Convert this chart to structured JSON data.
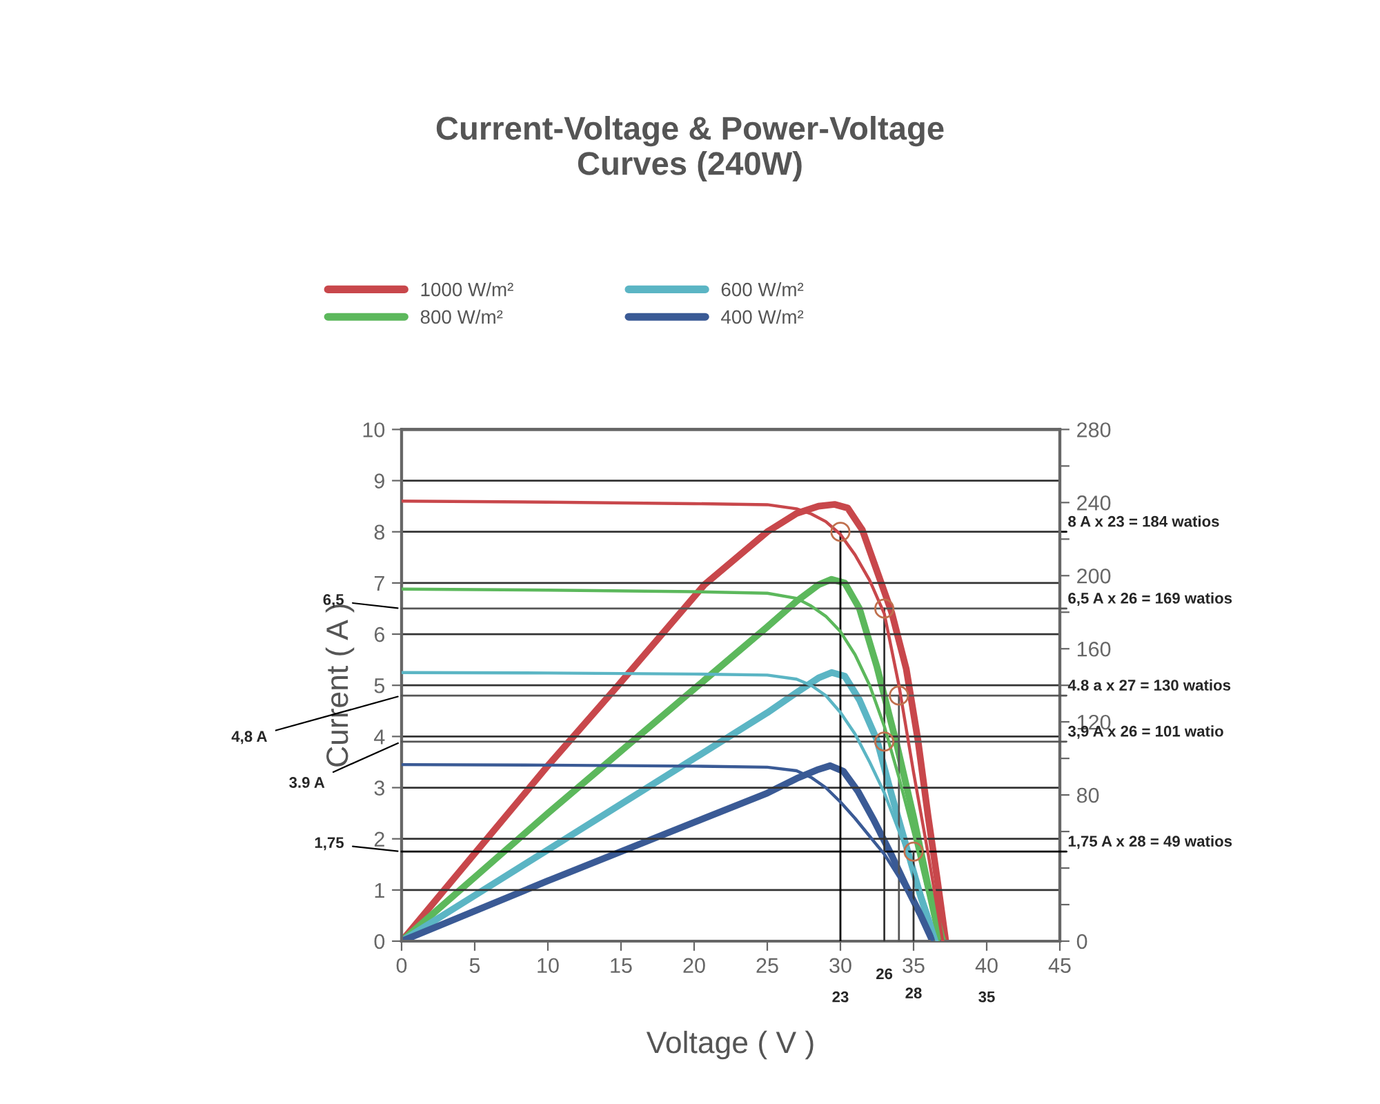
{
  "chart_data": {
    "type": "line",
    "title": "Current-Voltage & Power-Voltage\nCurves (240W)",
    "xlabel": "Voltage ( V )",
    "ylabel": "Current ( A )",
    "xlim": [
      0,
      45
    ],
    "xticks": [
      0,
      5,
      10,
      15,
      20,
      25,
      30,
      35,
      40,
      45
    ],
    "ylim": [
      0,
      10
    ],
    "yticks": [
      0,
      1,
      2,
      3,
      4,
      5,
      6,
      7,
      8,
      9,
      10
    ],
    "y2lim": [
      0,
      280
    ],
    "y2ticks": [
      0,
      {
        "value": 20,
        "label": null
      },
      {
        "value": 40,
        "label": null
      },
      {
        "value": 60,
        "label": null
      },
      80,
      {
        "value": 100,
        "label": null
      },
      120,
      {
        "value": 140,
        "label": null
      },
      160,
      {
        "value": 180,
        "label": null
      },
      200,
      {
        "value": 220,
        "label": null
      },
      240,
      {
        "value": 260,
        "label": null
      },
      280
    ],
    "grid": "y",
    "legend": "top",
    "series": [
      {
        "name": "1000 W/m²",
        "color": "#c8474b",
        "x": [
          0,
          10,
          20,
          25,
          27,
          28,
          29,
          30,
          31,
          32,
          33,
          34,
          35,
          36,
          37
        ],
        "values": [
          8.6,
          8.58,
          8.55,
          8.53,
          8.45,
          8.35,
          8.2,
          7.95,
          7.55,
          7.05,
          6.4,
          5.0,
          3.3,
          1.7,
          0
        ]
      },
      {
        "name": "800 W/m²",
        "color": "#5cb85c",
        "x": [
          0,
          10,
          20,
          25,
          27,
          28,
          29,
          30,
          31,
          32,
          33,
          34,
          35,
          36,
          36.7
        ],
        "values": [
          6.88,
          6.86,
          6.83,
          6.8,
          6.7,
          6.55,
          6.35,
          6.05,
          5.6,
          5.0,
          4.2,
          3.2,
          2.1,
          0.9,
          0
        ]
      },
      {
        "name": "600 W/m²",
        "color": "#5bb5c4",
        "x": [
          0,
          10,
          20,
          25,
          27,
          28,
          29,
          30,
          31,
          32,
          33,
          34,
          35,
          36,
          36.6
        ],
        "values": [
          5.25,
          5.24,
          5.22,
          5.2,
          5.12,
          5.0,
          4.8,
          4.47,
          4.05,
          3.5,
          2.9,
          2.15,
          1.4,
          0.55,
          0
        ]
      },
      {
        "name": "400 W/m²",
        "color": "#3a5a95",
        "x": [
          0,
          10,
          20,
          25,
          27,
          28,
          29,
          30,
          31,
          32,
          33,
          34,
          35,
          36,
          36.3
        ],
        "values": [
          3.45,
          3.44,
          3.42,
          3.4,
          3.33,
          3.2,
          3.0,
          2.72,
          2.4,
          2.05,
          1.7,
          1.25,
          0.75,
          0.25,
          0
        ]
      },
      {
        "color": "#c8474b",
        "axis": "y2",
        "x": [
          0,
          5,
          10,
          14.7,
          20.7,
          25,
          27,
          28.5,
          29.6,
          30.5,
          31.5,
          32.3,
          33.5,
          34.5,
          35.3,
          36,
          36.6,
          37.2
        ],
        "values": [
          0,
          48,
          96,
          139,
          195,
          224,
          234,
          238,
          239,
          237,
          225,
          207,
          180,
          149,
          110,
          68,
          35,
          0
        ]
      },
      {
        "color": "#5cb85c",
        "axis": "y2",
        "x": [
          0,
          5,
          10,
          15,
          20,
          25,
          27,
          28.5,
          29.4,
          30.3,
          31.3,
          32.5,
          33.9,
          35,
          36,
          37
        ],
        "values": [
          0,
          35,
          70,
          104,
          138,
          172,
          186,
          195,
          198,
          196,
          182,
          150,
          106,
          68,
          30,
          0
        ]
      },
      {
        "color": "#5bb5c4",
        "axis": "y2",
        "x": [
          0,
          10,
          20,
          25,
          27,
          28.5,
          29.4,
          30.3,
          31.3,
          32.5,
          33.5,
          34.5,
          35.5,
          36.5
        ],
        "values": [
          0,
          50,
          100,
          125,
          136,
          144,
          147,
          145,
          132,
          110,
          80,
          52,
          24,
          0
        ]
      },
      {
        "color": "#3a5a95",
        "axis": "y2",
        "x": [
          0,
          10,
          20,
          25,
          27,
          28.5,
          29.3,
          30.2,
          31.2,
          32.3,
          33.5,
          34.5,
          35.5,
          36.3
        ],
        "values": [
          0,
          33,
          65,
          81,
          89,
          94,
          96,
          93,
          82,
          66,
          47,
          30,
          14,
          0
        ]
      },
      {
        "type": "scatter",
        "marker": "circle",
        "color": "#c0704d",
        "x": [
          30,
          33,
          34,
          33,
          35
        ],
        "values": [
          8,
          6.5,
          4.8,
          3.9,
          1.75
        ]
      }
    ],
    "ref_lines": [
      {
        "axis": "y",
        "value": 6.5,
        "label": "6,5 A x 26 = 169 watios",
        "color": "#555555"
      },
      {
        "axis": "y",
        "value": 4.8,
        "label": "4.8 a x 27 = 130 watios",
        "color": "#555555"
      },
      {
        "axis": "y",
        "value": 3.9,
        "label": "3,9 A x 26 = 101 watio",
        "color": "#555555"
      },
      {
        "axis": "y",
        "value": 1.75,
        "label": "1,75 A x 28 = 49 watios",
        "color": "#000000"
      },
      {
        "axis": "x",
        "value": 30,
        "color": "#000000"
      },
      {
        "axis": "x",
        "value": 33,
        "color": "#333333"
      },
      {
        "axis": "x",
        "value": 34,
        "color": "#555555"
      },
      {
        "axis": "x",
        "value": 35,
        "color": "#333333"
      }
    ],
    "annotations": [
      "8 A x 23 = 184 watios",
      "6,5",
      "4,8 A",
      "3.9 A",
      "1,75",
      "23",
      "26",
      "28",
      "35"
    ]
  }
}
